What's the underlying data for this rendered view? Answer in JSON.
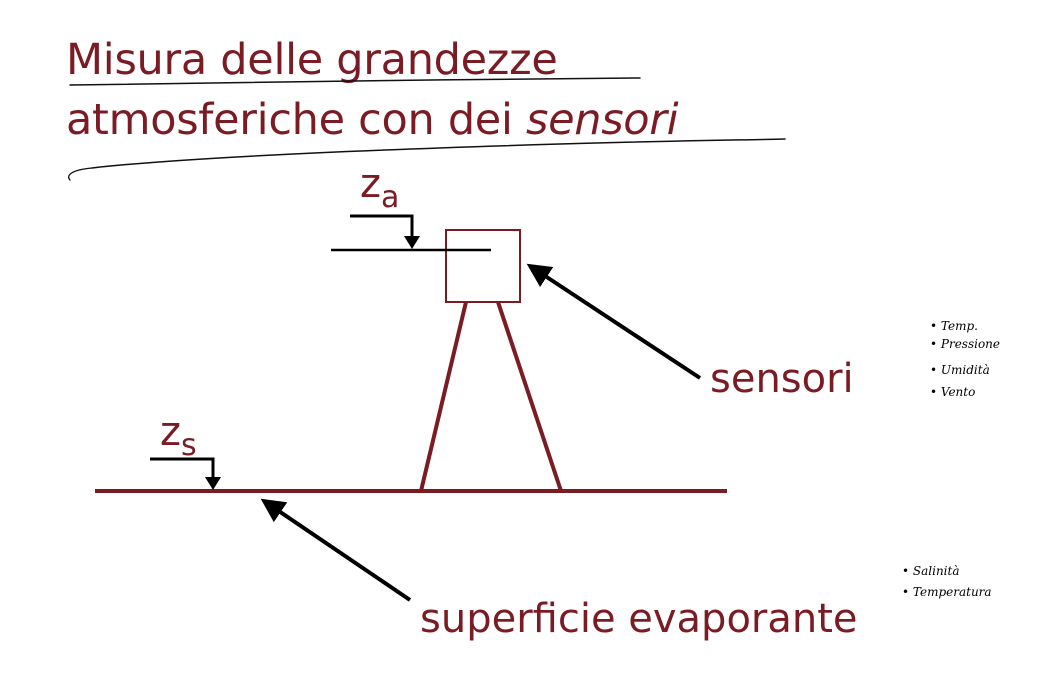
{
  "slide": {
    "title_line1": "Misura delle grandezze",
    "title_line2_pre": "atmosferiche con dei ",
    "title_line2_em": "sensori"
  },
  "diagram": {
    "za_symbol": "z",
    "za_subscript": "a",
    "zs_symbol": "z",
    "zs_subscript": "s",
    "sensor_label": "sensori",
    "surface_label": "superficie evaporante"
  },
  "notes": {
    "sensor_notes": [
      "• Temp.",
      "• Pressione",
      "• Umidità",
      "• Vento"
    ],
    "surface_notes": [
      "• Salinità",
      "• Temperatura"
    ]
  },
  "colors": {
    "title": "#7b1c24",
    "structure": "#7b1c24",
    "arrows": "#000000",
    "background": "#ffffff"
  }
}
